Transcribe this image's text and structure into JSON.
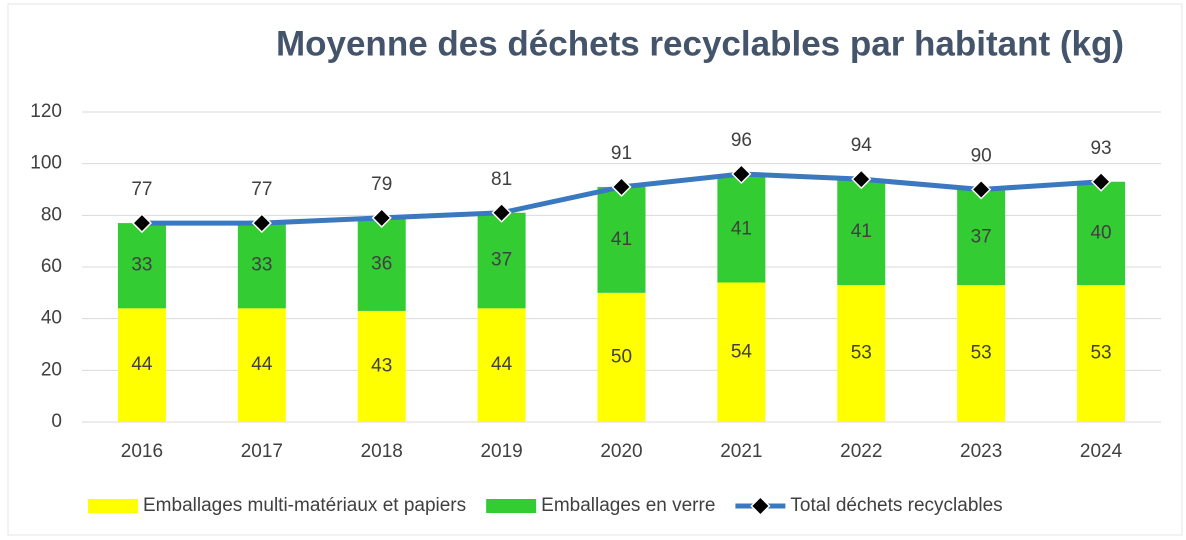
{
  "chart_data": {
    "type": "bar",
    "stacked": true,
    "title": "Moyenne des déchets recyclables par habitant (kg)",
    "categories": [
      "2016",
      "2017",
      "2018",
      "2019",
      "2020",
      "2021",
      "2022",
      "2023",
      "2024"
    ],
    "series": [
      {
        "name": "Emballages multi-matériaux et papiers",
        "color": "#ffff00",
        "values": [
          44,
          44,
          43,
          44,
          50,
          54,
          53,
          53,
          53
        ]
      },
      {
        "name": "Emballages en verre",
        "color": "#33cc33",
        "values": [
          33,
          33,
          36,
          37,
          41,
          41,
          41,
          37,
          40
        ]
      },
      {
        "name": "Total déchets recyclables",
        "color": "#3a78c0",
        "type": "line",
        "values": [
          77,
          77,
          79,
          81,
          91,
          96,
          94,
          90,
          93
        ]
      }
    ],
    "ylim": [
      0,
      120
    ],
    "yticks": [
      0,
      20,
      40,
      60,
      80,
      100,
      120
    ],
    "grid": true,
    "legend": "bottom"
  }
}
